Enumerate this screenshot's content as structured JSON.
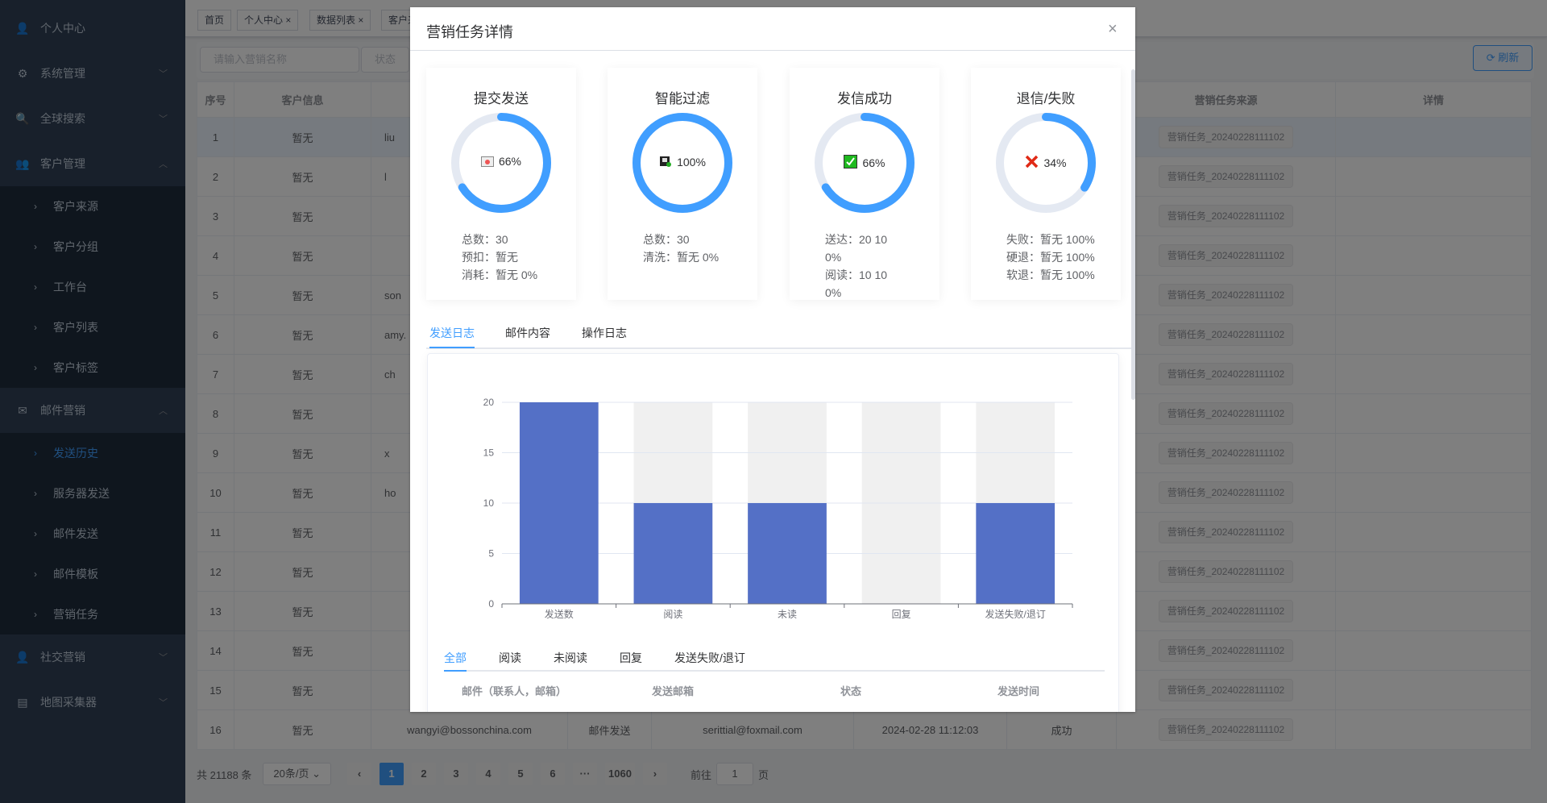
{
  "sidebar": {
    "items": [
      {
        "label": "个人中心",
        "icon": "user-icon"
      },
      {
        "label": "系统管理",
        "icon": "gear-icon",
        "expandable": true
      },
      {
        "label": "全球搜索",
        "icon": "search-icon",
        "expandable": true
      },
      {
        "label": "客户管理",
        "icon": "customer-icon",
        "expanded": true,
        "children": [
          "客户来源",
          "客户分组",
          "工作台",
          "客户列表",
          "客户标签"
        ]
      },
      {
        "label": "邮件营销",
        "icon": "mail-icon",
        "expanded": true,
        "children": [
          "发送历史",
          "服务器发送",
          "邮件发送",
          "邮件模板",
          "营销任务"
        ],
        "active_child": "发送历史"
      },
      {
        "label": "社交营销",
        "icon": "social-icon",
        "expandable": true
      },
      {
        "label": "地图采集器",
        "icon": "map-icon",
        "expandable": true
      }
    ]
  },
  "tags": [
    "首页",
    "个人中心",
    "数据列表",
    "客户来"
  ],
  "search": {
    "placeholder": "请输入营销名称",
    "status_placeholder": "状态",
    "refresh": "刷新"
  },
  "table": {
    "headers": {
      "index": "序号",
      "customer": "客户信息",
      "source": "营销任务来源",
      "detail": "详情"
    },
    "rows": [
      {
        "i": "1",
        "c": "暂无",
        "e": "liu",
        "s": "营销任务_20240228111102"
      },
      {
        "i": "2",
        "c": "暂无",
        "e": "l",
        "s": "营销任务_20240228111102"
      },
      {
        "i": "3",
        "c": "暂无",
        "e": "",
        "s": "营销任务_20240228111102"
      },
      {
        "i": "4",
        "c": "暂无",
        "e": "",
        "s": "营销任务_20240228111102"
      },
      {
        "i": "5",
        "c": "暂无",
        "e": "son",
        "s": "营销任务_20240228111102"
      },
      {
        "i": "6",
        "c": "暂无",
        "e": "amy.",
        "s": "营销任务_20240228111102"
      },
      {
        "i": "7",
        "c": "暂无",
        "e": "ch",
        "s": "营销任务_20240228111102"
      },
      {
        "i": "8",
        "c": "暂无",
        "e": "",
        "s": "营销任务_20240228111102"
      },
      {
        "i": "9",
        "c": "暂无",
        "e": "x",
        "s": "营销任务_20240228111102"
      },
      {
        "i": "10",
        "c": "暂无",
        "e": "ho",
        "s": "营销任务_20240228111102"
      },
      {
        "i": "11",
        "c": "暂无",
        "e": "",
        "s": "营销任务_20240228111102"
      },
      {
        "i": "12",
        "c": "暂无",
        "e": "",
        "s": "营销任务_20240228111102"
      },
      {
        "i": "13",
        "c": "暂无",
        "e": "",
        "s": "营销任务_20240228111102"
      },
      {
        "i": "14",
        "c": "暂无",
        "e": "",
        "s": "营销任务_20240228111102"
      },
      {
        "i": "15",
        "c": "暂无",
        "e": "",
        "s": "营销任务_20240228111102"
      },
      {
        "i": "16",
        "c": "暂无",
        "e": "wangyi@bossonchina.com",
        "type": "邮件发送",
        "sender": "serittial@foxmail.com",
        "time": "2024-02-28 11:12:03",
        "status": "成功",
        "s": "营销任务_20240228111102"
      }
    ]
  },
  "pagination": {
    "total": "共 21188 条",
    "page_size": "20条/页",
    "pages": [
      "1",
      "2",
      "3",
      "4",
      "5",
      "6",
      "···",
      "1060"
    ],
    "current": "1",
    "goto_label": "前往",
    "goto_value": "1",
    "page_suffix": "页"
  },
  "modal": {
    "title": "营销任务详情",
    "cards": [
      {
        "title": "提交发送",
        "percent": 66,
        "label": "66%",
        "icon": "envelope-icon",
        "lines": [
          "总数：30",
          "预扣：暂无",
          "消耗：暂无 0%"
        ]
      },
      {
        "title": "智能过滤",
        "percent": 100,
        "label": "100%",
        "icon": "filter-icon",
        "lines": [
          "总数：30",
          "清洗：暂无 0%"
        ]
      },
      {
        "title": "发信成功",
        "percent": 66,
        "label": "66%",
        "icon": "check-icon",
        "lines": [
          "送达：20 10",
          "0%",
          "阅读：10 10",
          "0%"
        ]
      },
      {
        "title": "退信/失败",
        "percent": 34,
        "label": "34%",
        "icon": "cross-icon",
        "lines": [
          "失败：暂无 100%",
          "硬退：暂无 100%",
          "软退：暂无 100%"
        ]
      }
    ],
    "tabs": [
      "发送日志",
      "邮件内容",
      "操作日志"
    ],
    "active_tab": "发送日志",
    "sub_tabs": [
      "全部",
      "阅读",
      "未阅读",
      "回复",
      "发送失败/退订"
    ],
    "active_sub_tab": "全部",
    "log_headers": [
      "邮件（联系人，邮箱）",
      "发送邮箱",
      "状态",
      "发送时间"
    ]
  },
  "colors": {
    "accent": "#409eff",
    "bar": "#5470c6",
    "bar_bg": "#f0f0f0",
    "donut_track": "#e4e9f2"
  },
  "chart_data": {
    "type": "bar",
    "categories": [
      "发送数",
      "阅读",
      "未读",
      "回复",
      "发送失败/退订"
    ],
    "values": [
      20,
      10,
      10,
      0,
      10
    ],
    "background_max": 20,
    "ylim": [
      0,
      20
    ],
    "yticks": [
      0,
      5,
      10,
      15,
      20
    ],
    "grid": true,
    "xlabel": "",
    "ylabel": ""
  }
}
